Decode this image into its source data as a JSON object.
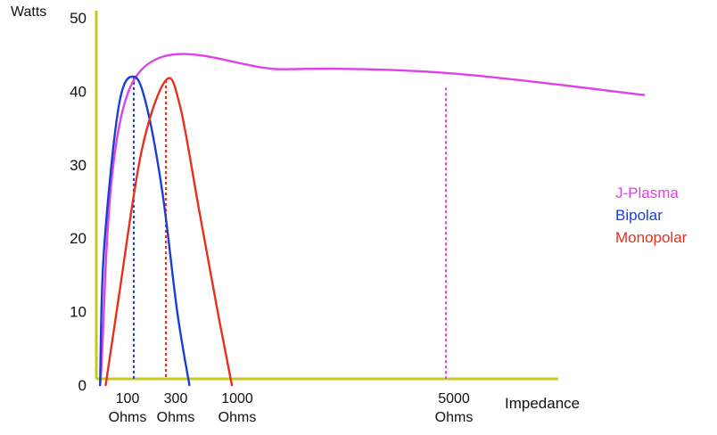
{
  "chart_data": {
    "type": "line",
    "ylabel": "Watts",
    "xlabel": "Impedance",
    "ylim": [
      0,
      50
    ],
    "y_ticks": [
      "0",
      "10",
      "20",
      "30",
      "40",
      "50"
    ],
    "x_ticks": [
      {
        "value": 100,
        "line1": "100",
        "line2": "Ohms"
      },
      {
        "value": 300,
        "line1": "300",
        "line2": "Ohms"
      },
      {
        "value": 1000,
        "line1": "1000",
        "line2": "Ohms"
      },
      {
        "value": 5000,
        "line1": "5000",
        "line2": "Ohms"
      }
    ],
    "axis_color": "#c8c820",
    "legend_position": "right",
    "series": [
      {
        "name": "J-Plasma",
        "color": "#e040e8",
        "points": [
          [
            10,
            0
          ],
          [
            100,
            41.5
          ],
          [
            2000,
            43
          ],
          [
            5000,
            42.5
          ],
          [
            8000,
            39.5
          ]
        ],
        "marker_x": 5000
      },
      {
        "name": "Bipolar",
        "color": "#1a3fd0",
        "points": [
          [
            10,
            0
          ],
          [
            20,
            18
          ],
          [
            60,
            38
          ],
          [
            100,
            42
          ],
          [
            180,
            38
          ],
          [
            280,
            26
          ],
          [
            420,
            10
          ],
          [
            550,
            0
          ]
        ],
        "marker_x": 100
      },
      {
        "name": "Monopolar",
        "color": "#e8301c",
        "points": [
          [
            25,
            0
          ],
          [
            60,
            12
          ],
          [
            150,
            32
          ],
          [
            300,
            41.5
          ],
          [
            450,
            38
          ],
          [
            650,
            24
          ],
          [
            850,
            10
          ],
          [
            1000,
            0
          ]
        ],
        "marker_x": 300
      }
    ]
  }
}
